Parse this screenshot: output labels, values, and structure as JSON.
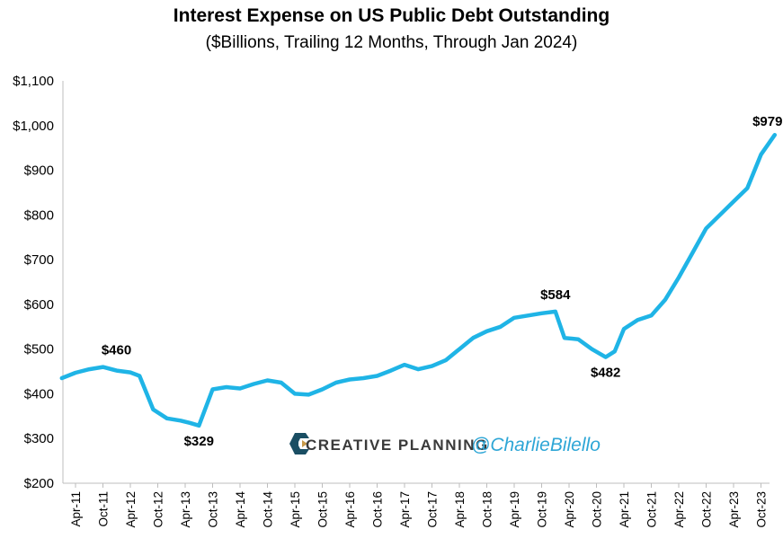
{
  "chart_data": {
    "type": "line",
    "title": "Interest Expense on US Public Debt Outstanding",
    "subtitle": "($Billions, Trailing 12 Months, Through Jan 2024)",
    "ylim": [
      200,
      1100
    ],
    "yticks": [
      200,
      300,
      400,
      500,
      600,
      700,
      800,
      900,
      1000,
      1100
    ],
    "ytick_labels": [
      "$200",
      "$300",
      "$400",
      "$500",
      "$600",
      "$700",
      "$800",
      "$900",
      "$1,000",
      "$1,100"
    ],
    "xtick_labels": [
      "Apr-11",
      "Oct-11",
      "Apr-12",
      "Oct-12",
      "Apr-13",
      "Oct-13",
      "Apr-14",
      "Oct-14",
      "Apr-15",
      "Oct-15",
      "Apr-16",
      "Oct-16",
      "Apr-17",
      "Oct-17",
      "Apr-18",
      "Oct-18",
      "Apr-19",
      "Oct-19",
      "Apr-20",
      "Oct-20",
      "Apr-21",
      "Oct-21",
      "Apr-22",
      "Oct-22",
      "Apr-23",
      "Oct-23"
    ],
    "grid": false,
    "line_color": "#1fb4e6",
    "series": [
      {
        "x": [
          "2011-01",
          "2011-04",
          "2011-07",
          "2011-10",
          "2012-01",
          "2012-04",
          "2012-06",
          "2012-09",
          "2012-12",
          "2013-03",
          "2013-05",
          "2013-07",
          "2013-10",
          "2014-01",
          "2014-04",
          "2014-07",
          "2014-10",
          "2015-01",
          "2015-04",
          "2015-07",
          "2015-10",
          "2016-01",
          "2016-04",
          "2016-07",
          "2016-10",
          "2017-01",
          "2017-04",
          "2017-07",
          "2017-10",
          "2018-01",
          "2018-04",
          "2018-07",
          "2018-10",
          "2019-01",
          "2019-04",
          "2019-07",
          "2019-10",
          "2020-01",
          "2020-03",
          "2020-06",
          "2020-09",
          "2020-12",
          "2021-02",
          "2021-04",
          "2021-07",
          "2021-10",
          "2022-01",
          "2022-04",
          "2022-07",
          "2022-10",
          "2023-01",
          "2023-04",
          "2023-07",
          "2023-10",
          "2024-01"
        ],
        "values": [
          435,
          447,
          455,
          460,
          452,
          448,
          440,
          365,
          345,
          340,
          335,
          329,
          410,
          415,
          412,
          422,
          430,
          425,
          400,
          398,
          410,
          425,
          432,
          435,
          440,
          452,
          465,
          455,
          462,
          475,
          500,
          525,
          540,
          550,
          570,
          575,
          580,
          584,
          525,
          522,
          500,
          482,
          495,
          545,
          565,
          575,
          610,
          660,
          715,
          770,
          800,
          830,
          860,
          935,
          979
        ]
      }
    ],
    "annotations": [
      {
        "label": "$460",
        "x": "2011-10",
        "y": 460
      },
      {
        "label": "$329",
        "x": "2013-07",
        "y": 329
      },
      {
        "label": "$584",
        "x": "2020-01",
        "y": 584
      },
      {
        "label": "$482",
        "x": "2020-12",
        "y": 482
      },
      {
        "label": "$979",
        "x": "2024-01",
        "y": 979
      }
    ]
  },
  "watermark": {
    "brand": "CREATIVE PLANNING",
    "handle": "@CharlieBilello",
    "brand_color": "#3a3a3a",
    "handle_color": "#2ea6d6"
  }
}
